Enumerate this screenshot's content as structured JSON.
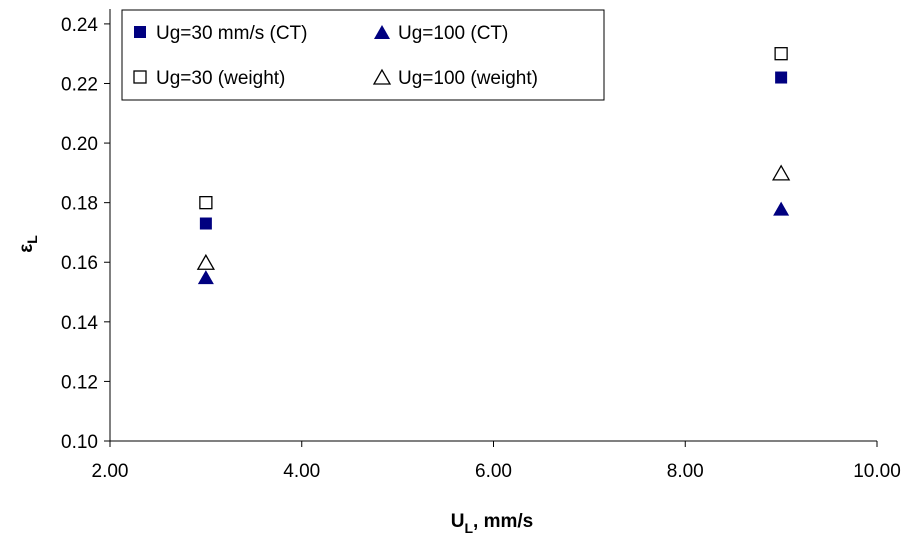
{
  "chart_data": {
    "type": "scatter",
    "title": "",
    "xlabel": {
      "main": "U",
      "sub": "L",
      "rest": ", mm/s"
    },
    "ylabel": {
      "main": "ε",
      "sub": "L"
    },
    "xlim": [
      2.0,
      10.0
    ],
    "ylim": [
      0.1,
      0.245
    ],
    "xticks": [
      "2.00",
      "4.00",
      "6.00",
      "8.00",
      "10.00"
    ],
    "yticks": [
      "0.10",
      "0.12",
      "0.14",
      "0.16",
      "0.18",
      "0.20",
      "0.22",
      "0.24"
    ],
    "grid": false,
    "legend_position": "top-left",
    "series": [
      {
        "name": "Ug=30 mm/s (CT)",
        "marker": "square-filled",
        "color": "#000080",
        "points": [
          {
            "x": 3.0,
            "y": 0.173
          },
          {
            "x": 9.0,
            "y": 0.222
          }
        ]
      },
      {
        "name": "Ug=100 (CT)",
        "marker": "triangle-filled",
        "color": "#000080",
        "points": [
          {
            "x": 3.0,
            "y": 0.155
          },
          {
            "x": 9.0,
            "y": 0.178
          }
        ]
      },
      {
        "name": "Ug=30 (weight)",
        "marker": "square-open",
        "color": "#000000",
        "points": [
          {
            "x": 3.0,
            "y": 0.18
          },
          {
            "x": 9.0,
            "y": 0.23
          }
        ]
      },
      {
        "name": "Ug=100 (weight)",
        "marker": "triangle-open",
        "color": "#000000",
        "points": [
          {
            "x": 3.0,
            "y": 0.16
          },
          {
            "x": 9.0,
            "y": 0.19
          }
        ]
      }
    ]
  }
}
